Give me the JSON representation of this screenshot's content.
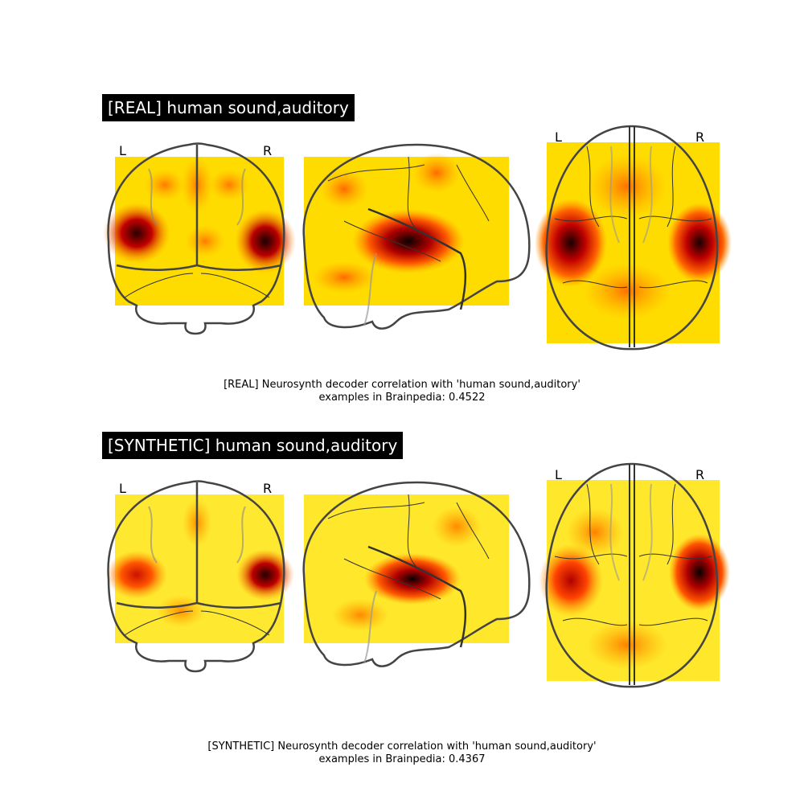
{
  "panels": [
    {
      "title": "[REAL] human sound,auditory",
      "orientation_labels": {
        "front_left": "L",
        "front_right": "R",
        "top_left": "L",
        "top_right": "R"
      },
      "caption_line1": "[REAL] Neurosynth decoder correlation with 'human sound,auditory'",
      "caption_line2": "examples in Brainpedia: 0.4522"
    },
    {
      "title": "[SYNTHETIC] human sound,auditory",
      "orientation_labels": {
        "front_left": "L",
        "front_right": "R",
        "top_left": "L",
        "top_right": "R"
      },
      "caption_line1": "[SYNTHETIC] Neurosynth decoder correlation with 'human sound,auditory'",
      "caption_line2": "examples in Brainpedia: 0.4367"
    }
  ],
  "colors": {
    "hot_low": "#ffff66",
    "hot_mid": "#ff9900",
    "hot_high": "#cc0000",
    "hot_max": "#1a0000",
    "outline": "#444444"
  }
}
